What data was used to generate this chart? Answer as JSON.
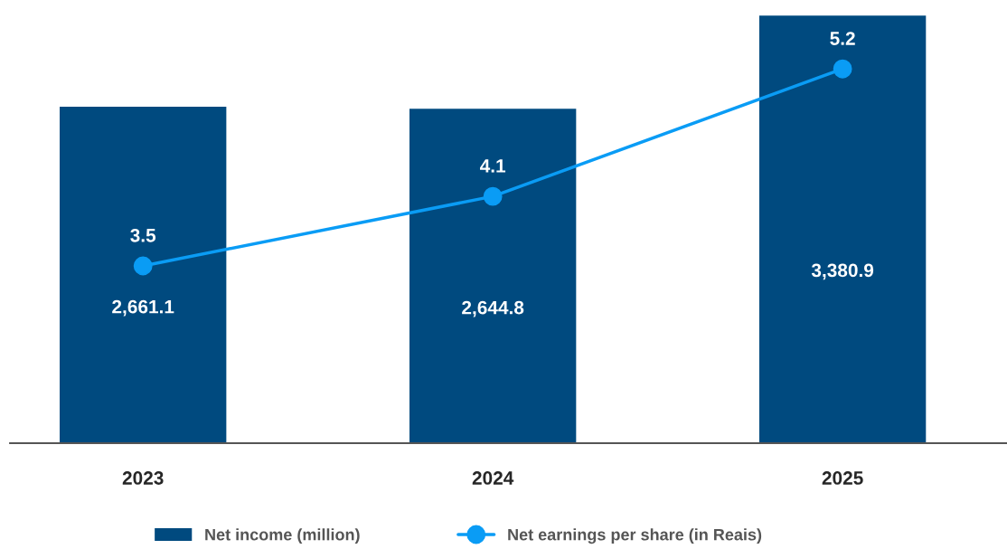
{
  "chart_data": {
    "type": "bar",
    "categories": [
      "2023",
      "2024",
      "2025"
    ],
    "series": [
      {
        "name": "Net income (million)",
        "color": "#004a7f",
        "values": [
          2661.1,
          2644.8,
          3380.9
        ],
        "value_labels": [
          "2,661.1",
          "2,644.8",
          "3,380.9"
        ]
      },
      {
        "name": "Net earnings per share (in Reais)",
        "type": "line",
        "axis": "y2",
        "color": "#0a9cf5",
        "marker": "circle",
        "values": [
          3.5,
          4.1,
          5.2
        ],
        "value_labels": [
          "3.5",
          "4.1",
          "5.2"
        ]
      }
    ],
    "tick_labels": "x",
    "grid": false,
    "legend": "bottom"
  }
}
